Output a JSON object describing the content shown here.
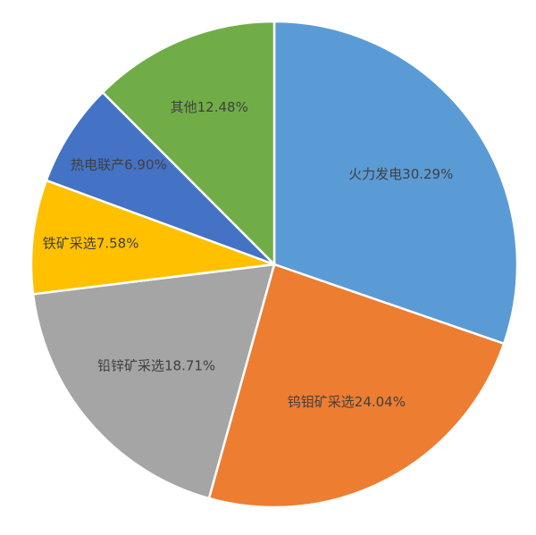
{
  "chart_data": {
    "type": "pie",
    "categories": [
      "火力发电",
      "钨钼矿采选",
      "铅锌矿采选",
      "铁矿采选",
      "热电联产",
      "其他"
    ],
    "values": [
      30.29,
      24.04,
      18.71,
      7.58,
      6.9,
      12.48
    ],
    "value_labels": [
      "30.29%",
      "24.04%",
      "18.71%",
      "7.58%",
      "6.90%",
      "12.48%"
    ],
    "colors": [
      "#5b9bd5",
      "#ed7d31",
      "#a5a5a5",
      "#ffc000",
      "#4472c4",
      "#70ad47"
    ]
  }
}
